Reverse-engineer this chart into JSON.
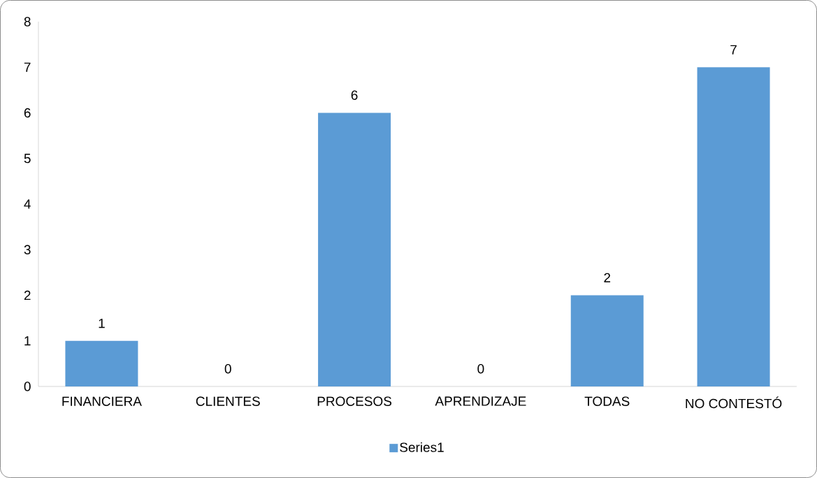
{
  "chart_data": {
    "type": "bar",
    "categories": [
      "FINANCIERA",
      "CLIENTES",
      "PROCESOS",
      "APRENDIZAJE",
      "TODAS",
      "NO CONTESTÓ"
    ],
    "series": [
      {
        "name": "Series1",
        "color": "#5b9bd5",
        "values": [
          1,
          0,
          6,
          0,
          2,
          7
        ]
      }
    ],
    "ylim": [
      0,
      8
    ],
    "yticks": [
      0,
      1,
      2,
      3,
      4,
      5,
      6,
      7,
      8
    ],
    "data_labels": true,
    "legend": "bottom",
    "grid": false
  }
}
